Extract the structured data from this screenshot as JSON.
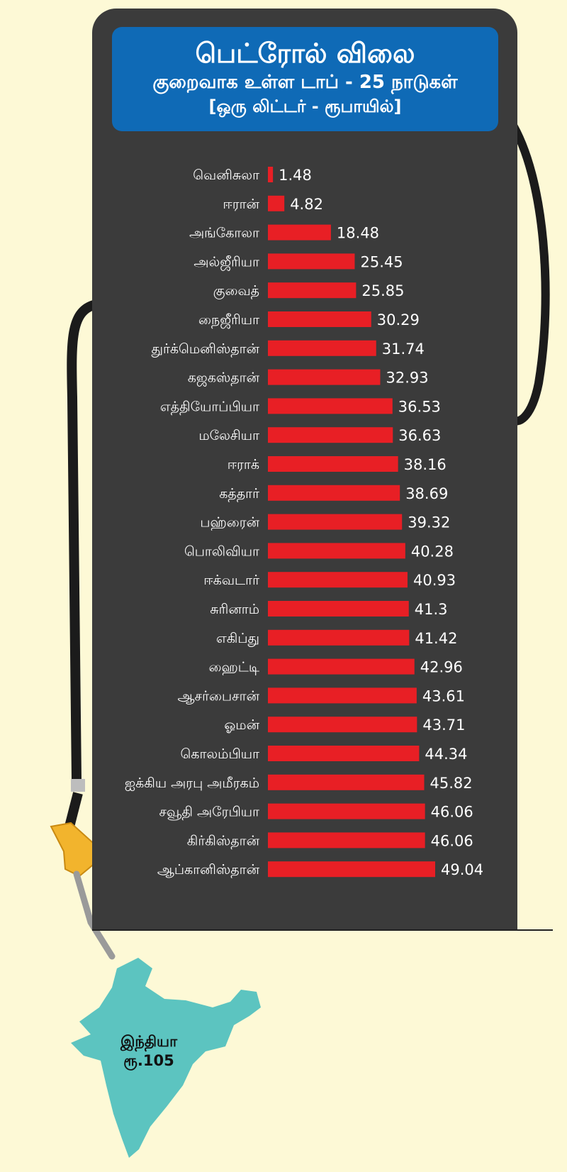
{
  "header": {
    "title": "பெட்ரோல் விலை",
    "subtitle": "குறைவாக உள்ள டாப் - 25 நாடுகள்",
    "unit_note": "[ஒரு லிட்டர் - ரூபாயில்]"
  },
  "colors": {
    "background": "#fdf9d6",
    "pump": "#3b3b3b",
    "title_box": "#0f6ab6",
    "bar": "#e81f25",
    "map": "#5cc4c0"
  },
  "chart_data": {
    "type": "bar",
    "orientation": "horizontal",
    "categories": [
      "வெனிசுலா",
      "ஈரான்",
      "அங்கோலா",
      "அல்ஜீரியா",
      "குவைத்",
      "நைஜீரியா",
      "துர்க்மெனிஸ்தான்",
      "கஜகஸ்தான்",
      "எத்தியோப்பியா",
      "மலேசியா",
      "ஈராக்",
      "கத்தார்",
      "பஹ்ரைன்",
      "பொலிவியா",
      "ஈக்வடார்",
      "சுரினாம்",
      "எகிப்து",
      "ஹைட்டி",
      "ஆசர்பைசான்",
      "ஓமன்",
      "கொலம்பியா",
      "ஐக்கிய அரபு அமீரகம்",
      "சவூதி அரேபியா",
      "கிர்கிஸ்தான்",
      "ஆப்கானிஸ்தான்"
    ],
    "values": [
      1.48,
      4.82,
      18.48,
      25.45,
      25.85,
      30.29,
      31.74,
      32.93,
      36.53,
      36.63,
      38.16,
      38.69,
      39.32,
      40.28,
      40.93,
      41.3,
      41.42,
      42.96,
      43.61,
      43.71,
      44.34,
      45.82,
      46.06,
      46.06,
      49.04
    ],
    "value_labels": [
      "1.48",
      "4.82",
      "18.48",
      "25.45",
      "25.85",
      "30.29",
      "31.74",
      "32.93",
      "36.53",
      "36.63",
      "38.16",
      "38.69",
      "39.32",
      "40.28",
      "40.93",
      "41.3",
      "41.42",
      "42.96",
      "43.61",
      "43.71",
      "44.34",
      "45.82",
      "46.06",
      "46.06",
      "49.04"
    ],
    "xlim": [
      0,
      49.04
    ],
    "grid": false,
    "legend": "none"
  },
  "callout": {
    "country": "இந்தியா",
    "price": "ரூ.105"
  }
}
